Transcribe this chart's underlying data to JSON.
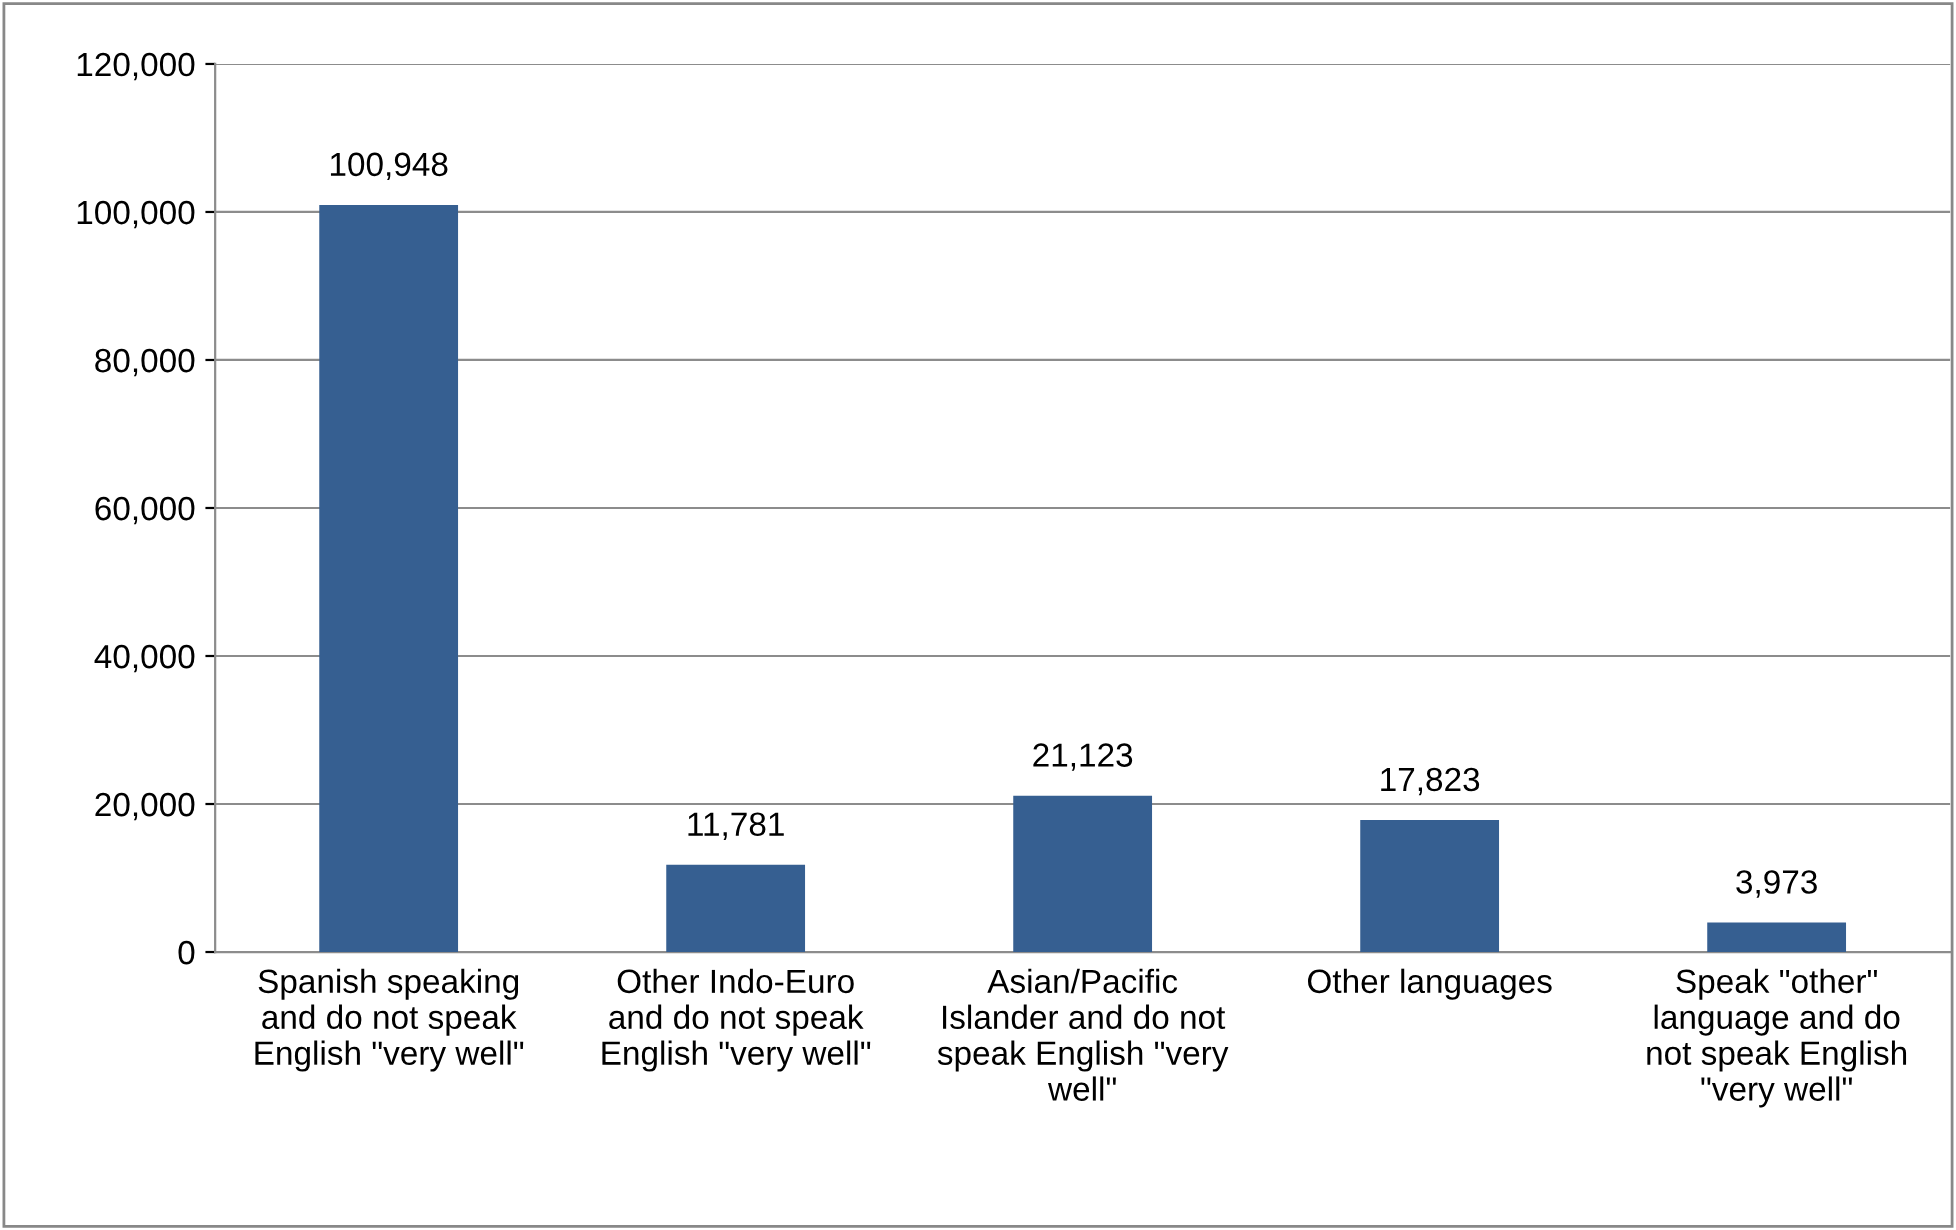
{
  "chart_data": {
    "type": "bar",
    "categories": [
      "Spanish speaking\nand do not speak\nEnglish \"very well\"",
      "Other Indo-Euro\nand do not speak\nEnglish \"very well\"",
      "Asian/Pacific\nIslander and do not\nspeak English \"very\nwell\"",
      "Other languages",
      "Speak \"other\"\nlanguage and do\nnot speak English\n\"very well\""
    ],
    "values": [
      100948,
      11781,
      21123,
      17823,
      3973
    ],
    "color": "#365f91",
    "ylim": [
      0,
      120000
    ],
    "yticks": [
      {
        "value": 0,
        "label": "0"
      },
      {
        "value": 20000,
        "label": "20,000"
      },
      {
        "value": 40000,
        "label": "40,000"
      },
      {
        "value": 60000,
        "label": "60,000"
      },
      {
        "value": 80000,
        "label": "80,000"
      },
      {
        "value": 100000,
        "label": "100,000"
      },
      {
        "value": 120000,
        "label": "120,000"
      }
    ],
    "grid": "y",
    "value_labels": [
      "100,948",
      "11,781",
      "21,123",
      "17,823",
      "3,973"
    ],
    "legend": false
  }
}
